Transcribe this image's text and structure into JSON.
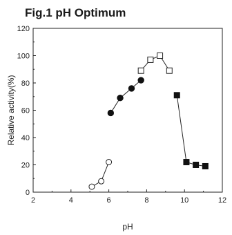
{
  "chart_data": {
    "type": "scatter",
    "title": "Fig.1 pH Optimum",
    "xlabel": "pH",
    "ylabel": "Relative activity(%)",
    "xlim": [
      2,
      12
    ],
    "ylim": [
      0,
      120
    ],
    "xticks": [
      "2",
      "4",
      "6",
      "8",
      "10",
      "12"
    ],
    "yticks": [
      "0",
      "20",
      "40",
      "60",
      "80",
      "100",
      "120"
    ],
    "grid": false,
    "legend": "none",
    "series": [
      {
        "marker": "open-circle",
        "x": [
          5.1,
          5.6,
          6.0
        ],
        "y": [
          4,
          8,
          22
        ]
      },
      {
        "marker": "filled-circle",
        "x": [
          6.1,
          6.6,
          7.2,
          7.7
        ],
        "y": [
          58,
          69,
          76,
          82
        ]
      },
      {
        "marker": "open-square",
        "x": [
          7.7,
          8.2,
          8.7,
          9.2
        ],
        "y": [
          89,
          97,
          100,
          89
        ]
      },
      {
        "marker": "filled-square",
        "x": [
          9.6,
          10.1,
          10.6,
          11.1
        ],
        "y": [
          71,
          22,
          20,
          19
        ]
      }
    ]
  }
}
